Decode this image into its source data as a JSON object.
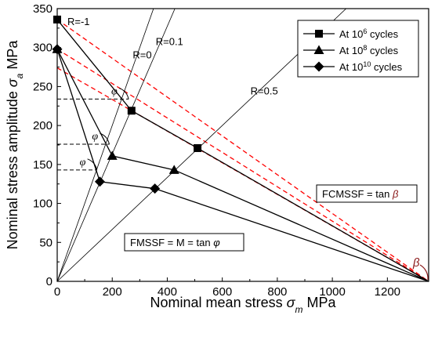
{
  "chart_data": {
    "type": "line",
    "xlabel": {
      "main": "Nominal mean stress ",
      "symbol": "σ",
      "sub": "m",
      "unit": " MPa"
    },
    "ylabel": {
      "main": "Nominal stress amplitude ",
      "symbol": "σ",
      "sub": "a",
      "unit": " MPa"
    },
    "xlim": [
      0,
      1350
    ],
    "ylim": [
      0,
      350
    ],
    "xticks": [
      "0",
      "200",
      "400",
      "600",
      "800",
      "1000",
      "1200"
    ],
    "yticks": [
      "0",
      "50",
      "100",
      "150",
      "200",
      "250",
      "300",
      "350"
    ],
    "legend_position": "top-right",
    "series": [
      {
        "name_prefix": "At 10",
        "name_exp": "6",
        "name_suffix": " cycles",
        "marker": "square",
        "x": [
          0,
          270,
          510,
          1350
        ],
        "y": [
          336,
          219,
          171,
          0
        ]
      },
      {
        "name_prefix": "At 10",
        "name_exp": "8",
        "name_suffix": " cycles",
        "marker": "triangle",
        "x": [
          0,
          200,
          425,
          1350
        ],
        "y": [
          298,
          161,
          143,
          0
        ]
      },
      {
        "name_prefix": "At 10",
        "name_exp": "10",
        "name_suffix": " cycles",
        "marker": "diamond",
        "x": [
          0,
          155,
          355,
          1350
        ],
        "y": [
          298,
          128,
          119,
          0
        ]
      }
    ],
    "dashed_fits": [
      {
        "x": [
          0,
          1350
        ],
        "y": [
          336,
          0
        ]
      },
      {
        "x": [
          0,
          1350
        ],
        "y": [
          298,
          0
        ]
      },
      {
        "x": [
          0,
          1350
        ],
        "y": [
          274,
          0
        ]
      }
    ],
    "r_lines": [
      {
        "label": "R=0",
        "R": 0
      },
      {
        "label": "R=0.1",
        "R": 0.1
      },
      {
        "label": "R=0.5",
        "R": 0.5
      }
    ],
    "r_neg1_label": "R=-1",
    "guide_y": [
      234,
      176,
      143
    ],
    "phi_symbol": "φ",
    "beta_symbol": "β",
    "box_fcmssf": {
      "text": "FCMSSF = tan ",
      "symbol": "β"
    },
    "box_fmssf": {
      "text": "FMSSF = M = tan ",
      "symbol": "φ"
    },
    "colors": {
      "curve": "#000000",
      "fit": "#ff0000",
      "beta": "#8b1a1a"
    }
  }
}
